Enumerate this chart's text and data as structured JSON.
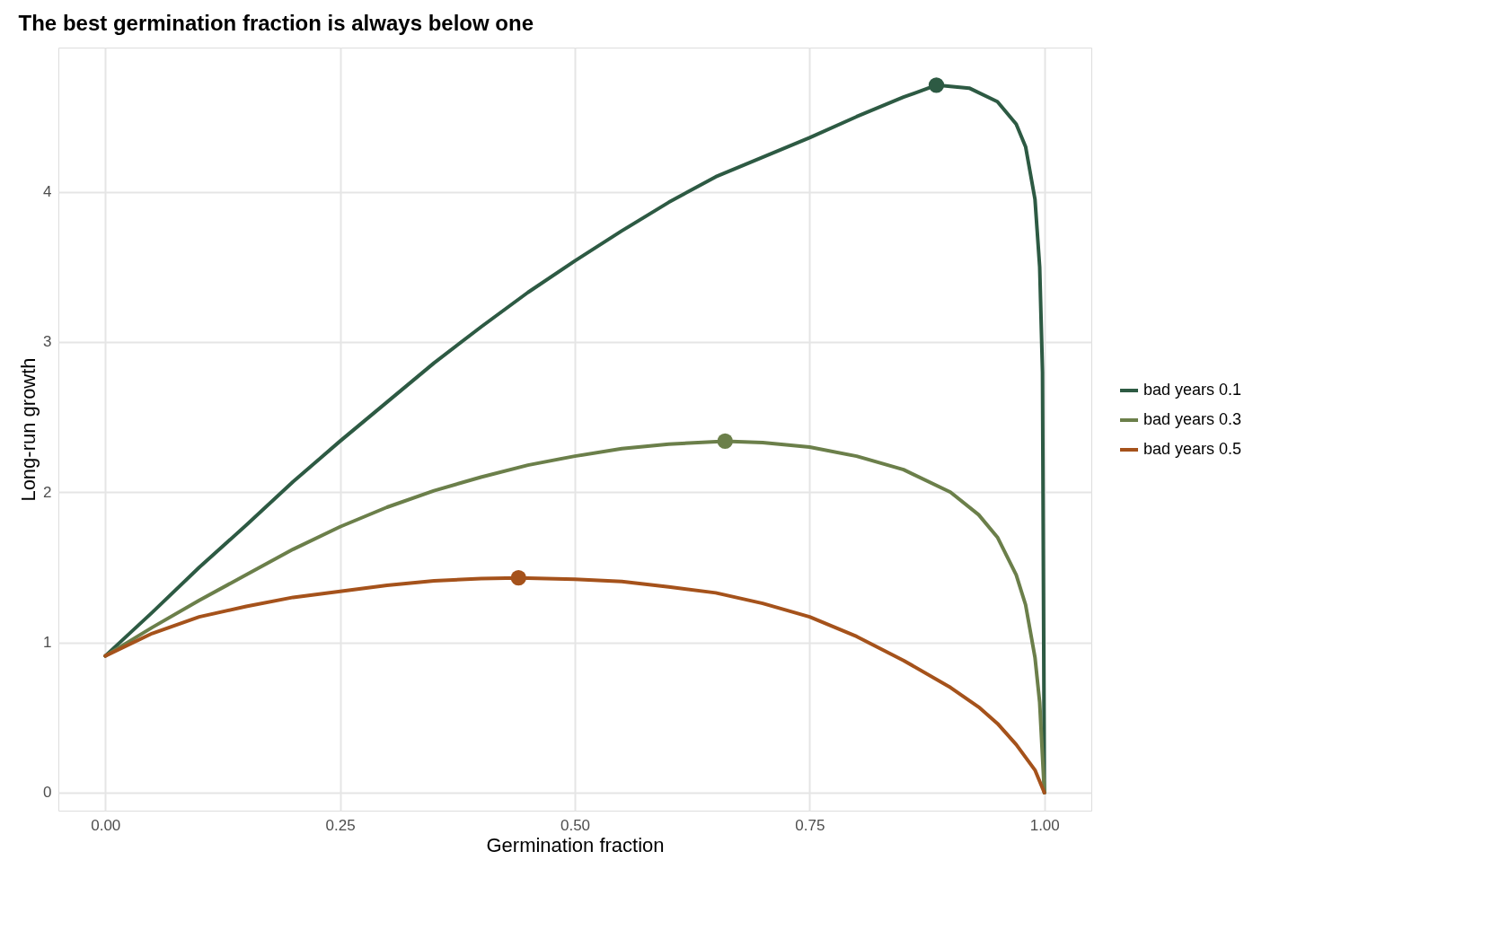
{
  "chart_data": {
    "type": "line",
    "title": "The best germination fraction is always below one",
    "xlabel": "Germination fraction",
    "ylabel": "Long-run growth",
    "xlim": [
      -0.05,
      1.05
    ],
    "ylim": [
      -0.12,
      4.96
    ],
    "xticks": [
      {
        "value": 0,
        "label": "0.00"
      },
      0.25,
      {
        "value": 0.5,
        "label": "0.50"
      },
      0.75,
      {
        "value": 1,
        "label": "1.00"
      }
    ],
    "yticks": [
      0,
      1,
      2,
      3,
      4
    ],
    "grid": true,
    "legend": "right",
    "marker": "none",
    "line_style": "solid",
    "series": [
      {
        "name": "bad years 0.1",
        "color": "#2d5a43",
        "x": [
          0,
          0.05,
          0.1,
          0.15,
          0.2,
          0.25,
          0.3,
          0.35,
          0.4,
          0.45,
          0.5,
          0.55,
          0.6,
          0.65,
          0.7,
          0.75,
          0.8,
          0.85,
          0.885,
          0.92,
          0.95,
          0.97,
          0.98,
          0.99,
          0.995,
          0.998,
          1.0
        ],
        "values": [
          0.91,
          1.2,
          1.5,
          1.78,
          2.07,
          2.34,
          2.6,
          2.86,
          3.1,
          3.33,
          3.54,
          3.74,
          3.93,
          4.1,
          4.23,
          4.36,
          4.5,
          4.63,
          4.71,
          4.69,
          4.6,
          4.45,
          4.3,
          3.95,
          3.5,
          2.8,
          0
        ]
      },
      {
        "name": "bad years 0.3",
        "color": "#6b7f4a",
        "x": [
          0,
          0.05,
          0.1,
          0.15,
          0.2,
          0.25,
          0.3,
          0.35,
          0.4,
          0.45,
          0.5,
          0.55,
          0.6,
          0.66,
          0.7,
          0.75,
          0.8,
          0.85,
          0.9,
          0.93,
          0.95,
          0.97,
          0.98,
          0.99,
          0.995,
          1.0
        ],
        "values": [
          0.91,
          1.1,
          1.28,
          1.45,
          1.62,
          1.77,
          1.9,
          2.01,
          2.1,
          2.18,
          2.24,
          2.29,
          2.32,
          2.34,
          2.33,
          2.3,
          2.24,
          2.15,
          2.0,
          1.85,
          1.7,
          1.45,
          1.25,
          0.9,
          0.6,
          0
        ]
      },
      {
        "name": "bad years 0.5",
        "color": "#a5521b",
        "x": [
          0,
          0.05,
          0.1,
          0.15,
          0.2,
          0.25,
          0.3,
          0.35,
          0.4,
          0.44,
          0.5,
          0.55,
          0.6,
          0.65,
          0.7,
          0.75,
          0.8,
          0.85,
          0.9,
          0.93,
          0.95,
          0.97,
          0.99,
          1.0
        ],
        "values": [
          0.91,
          1.06,
          1.17,
          1.24,
          1.3,
          1.34,
          1.38,
          1.41,
          1.425,
          1.43,
          1.42,
          1.405,
          1.37,
          1.33,
          1.26,
          1.17,
          1.04,
          0.88,
          0.7,
          0.57,
          0.46,
          0.32,
          0.15,
          0
        ]
      },
      {
        "type": "scatter",
        "marker": "circle",
        "x": [
          0.885,
          0.66,
          0.44
        ],
        "values": [
          4.71,
          2.34,
          1.43
        ],
        "colors": [
          "#2d5a43",
          "#6b7f4a",
          "#a5521b"
        ]
      }
    ]
  }
}
